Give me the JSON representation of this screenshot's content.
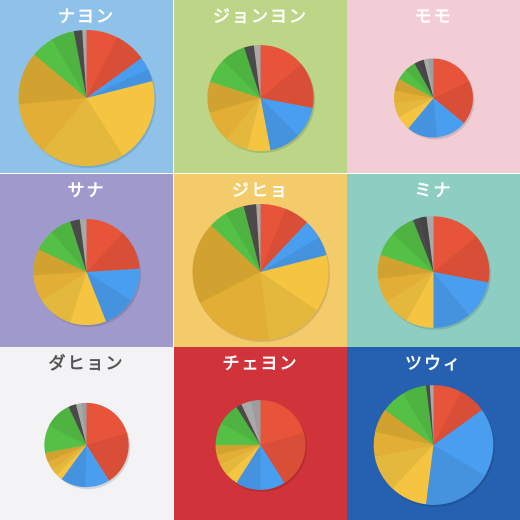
{
  "chart_data": [
    {
      "type": "pie",
      "title": "ナヨン",
      "bg": "#8ec2e8",
      "title_color": "#ffffff",
      "size": 1.0,
      "slices": [
        {
          "color": "#e8543a",
          "value": 15
        },
        {
          "color": "#4a9ef0",
          "value": 6
        },
        {
          "color": "#f5c542",
          "value": 40
        },
        {
          "color": "#e2ae35",
          "value": 25
        },
        {
          "color": "#55c046",
          "value": 11
        },
        {
          "color": "#4a4a4a",
          "value": 2
        },
        {
          "color": "#a9a9a9",
          "value": 1
        }
      ]
    },
    {
      "type": "pie",
      "title": "ジョンヨン",
      "bg": "#bcd586",
      "title_color": "#ffffff",
      "size": 0.78,
      "slices": [
        {
          "color": "#e8543a",
          "value": 28
        },
        {
          "color": "#4a9ef0",
          "value": 19
        },
        {
          "color": "#f5c542",
          "value": 14
        },
        {
          "color": "#e2ae35",
          "value": 19
        },
        {
          "color": "#55c046",
          "value": 15
        },
        {
          "color": "#4a4a4a",
          "value": 3
        },
        {
          "color": "#a9a9a9",
          "value": 2
        }
      ]
    },
    {
      "type": "pie",
      "title": "モモ",
      "bg": "#f2cdd6",
      "title_color": "#ffffff",
      "size": 0.58,
      "slices": [
        {
          "color": "#e8543a",
          "value": 36
        },
        {
          "color": "#4a9ef0",
          "value": 25
        },
        {
          "color": "#f5c542",
          "value": 12
        },
        {
          "color": "#e2ae35",
          "value": 10
        },
        {
          "color": "#55c046",
          "value": 9
        },
        {
          "color": "#4a4a4a",
          "value": 4
        },
        {
          "color": "#a9a9a9",
          "value": 4
        }
      ]
    },
    {
      "type": "pie",
      "title": "サナ",
      "bg": "#9f9acb",
      "title_color": "#ffffff",
      "size": 0.78,
      "slices": [
        {
          "color": "#e8543a",
          "value": 24
        },
        {
          "color": "#4a9ef0",
          "value": 20
        },
        {
          "color": "#f5c542",
          "value": 22
        },
        {
          "color": "#e2ae35",
          "value": 16
        },
        {
          "color": "#55c046",
          "value": 13
        },
        {
          "color": "#4a4a4a",
          "value": 3
        },
        {
          "color": "#a9a9a9",
          "value": 2
        }
      ]
    },
    {
      "type": "pie",
      "title": "ジヒョ",
      "bg": "#f4cb6b",
      "title_color": "#ffffff",
      "size": 1.0,
      "slices": [
        {
          "color": "#e8543a",
          "value": 12
        },
        {
          "color": "#4a9ef0",
          "value": 9
        },
        {
          "color": "#f5c542",
          "value": 27
        },
        {
          "color": "#e2ae35",
          "value": 39
        },
        {
          "color": "#55c046",
          "value": 9
        },
        {
          "color": "#4a4a4a",
          "value": 3
        },
        {
          "color": "#a9a9a9",
          "value": 1
        }
      ]
    },
    {
      "type": "pie",
      "title": "ミナ",
      "bg": "#8ecdc1",
      "title_color": "#ffffff",
      "size": 0.82,
      "slices": [
        {
          "color": "#e8543a",
          "value": 28
        },
        {
          "color": "#4a9ef0",
          "value": 22
        },
        {
          "color": "#f5c542",
          "value": 16
        },
        {
          "color": "#e2ae35",
          "value": 14
        },
        {
          "color": "#55c046",
          "value": 14
        },
        {
          "color": "#4a4a4a",
          "value": 4
        },
        {
          "color": "#a9a9a9",
          "value": 2
        }
      ]
    },
    {
      "type": "pie",
      "title": "ダヒョン",
      "bg": "#f3f3f5",
      "title_color": "#555555",
      "size": 0.62,
      "slices": [
        {
          "color": "#e8543a",
          "value": 41
        },
        {
          "color": "#4a9ef0",
          "value": 19
        },
        {
          "color": "#f5c542",
          "value": 5
        },
        {
          "color": "#e2ae35",
          "value": 7
        },
        {
          "color": "#55c046",
          "value": 21
        },
        {
          "color": "#4a4a4a",
          "value": 3
        },
        {
          "color": "#a9a9a9",
          "value": 4
        }
      ]
    },
    {
      "type": "pie",
      "title": "チェヨン",
      "bg": "#d1333a",
      "title_color": "#ffffff",
      "size": 0.66,
      "slices": [
        {
          "color": "#e8543a",
          "value": 41
        },
        {
          "color": "#4a9ef0",
          "value": 18
        },
        {
          "color": "#f5c542",
          "value": 9
        },
        {
          "color": "#e2ae35",
          "value": 7
        },
        {
          "color": "#55c046",
          "value": 16
        },
        {
          "color": "#4a4a4a",
          "value": 2
        },
        {
          "color": "#a9a9a9",
          "value": 7
        }
      ]
    },
    {
      "type": "pie",
      "title": "ツウィ",
      "bg": "#2660b0",
      "title_color": "#ffffff",
      "size": 0.88,
      "slices": [
        {
          "color": "#e8543a",
          "value": 15
        },
        {
          "color": "#4a9ef0",
          "value": 37
        },
        {
          "color": "#f5c542",
          "value": 20
        },
        {
          "color": "#e2ae35",
          "value": 13
        },
        {
          "color": "#55c046",
          "value": 13
        },
        {
          "color": "#4a4a4a",
          "value": 1
        },
        {
          "color": "#a9a9a9",
          "value": 1
        }
      ]
    }
  ]
}
